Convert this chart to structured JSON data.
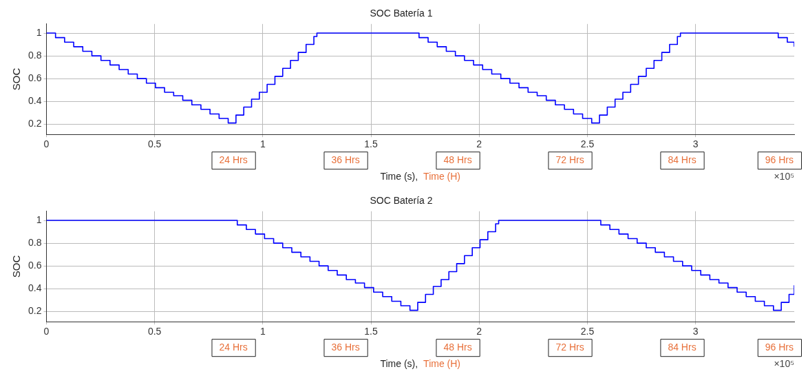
{
  "chart_data": [
    {
      "type": "step",
      "title": "SOC Batería 1",
      "xlabel": "Time (s),",
      "ylabel": "SOC",
      "xlim": [
        0,
        3.456
      ],
      "ylim": [
        0.11,
        1.08
      ],
      "xticks": [
        0,
        0.5,
        1,
        1.5,
        2,
        2.5,
        3
      ],
      "yticks": [
        0.2,
        0.4,
        0.6,
        0.8,
        1
      ],
      "grid": true,
      "annotations": [
        "Time (H)",
        "×10⁵",
        "24 Hrs",
        "36 Hrs",
        "48 Hrs",
        "72 Hrs",
        "84 Hrs",
        "96 Hrs"
      ],
      "series": [
        {
          "color": "#0000ff",
          "x": [
            0,
            0.042,
            0.084,
            0.126,
            0.168,
            0.21,
            0.252,
            0.294,
            0.336,
            0.378,
            0.42,
            0.462,
            0.504,
            0.546,
            0.588,
            0.63,
            0.672,
            0.714,
            0.756,
            0.798,
            0.84,
            0.876,
            0.912,
            0.948,
            0.984,
            1.02,
            1.056,
            1.092,
            1.128,
            1.164,
            1.2,
            1.236,
            1.25,
            1.68,
            1.722,
            1.764,
            1.806,
            1.848,
            1.89,
            1.932,
            1.974,
            2.016,
            2.058,
            2.1,
            2.142,
            2.184,
            2.226,
            2.268,
            2.31,
            2.352,
            2.394,
            2.436,
            2.478,
            2.52,
            2.556,
            2.592,
            2.628,
            2.664,
            2.7,
            2.736,
            2.772,
            2.808,
            2.844,
            2.88,
            2.916,
            2.93,
            3.34,
            3.382,
            3.424,
            3.456
          ],
          "values": [
            1,
            0.96,
            0.92,
            0.88,
            0.84,
            0.8,
            0.76,
            0.72,
            0.68,
            0.64,
            0.6,
            0.56,
            0.52,
            0.48,
            0.45,
            0.41,
            0.37,
            0.33,
            0.29,
            0.25,
            0.21,
            0.28,
            0.35,
            0.42,
            0.48,
            0.55,
            0.62,
            0.69,
            0.76,
            0.83,
            0.9,
            0.97,
            1,
            1,
            0.96,
            0.92,
            0.88,
            0.84,
            0.8,
            0.76,
            0.72,
            0.68,
            0.64,
            0.6,
            0.56,
            0.52,
            0.48,
            0.45,
            0.41,
            0.37,
            0.33,
            0.29,
            0.25,
            0.21,
            0.28,
            0.35,
            0.42,
            0.48,
            0.55,
            0.62,
            0.69,
            0.76,
            0.83,
            0.9,
            0.97,
            1,
            1,
            0.96,
            0.92,
            0.88
          ]
        }
      ]
    },
    {
      "type": "step",
      "title": "SOC Batería 2",
      "xlabel": "Time (s),",
      "ylabel": "SOC",
      "xlim": [
        0,
        3.456
      ],
      "ylim": [
        0.11,
        1.08
      ],
      "xticks": [
        0,
        0.5,
        1,
        1.5,
        2,
        2.5,
        3
      ],
      "yticks": [
        0.2,
        0.4,
        0.6,
        0.8,
        1
      ],
      "grid": true,
      "annotations": [
        "Time (H)",
        "×10⁵",
        "24 Hrs",
        "36 Hrs",
        "48 Hrs",
        "72 Hrs",
        "84 Hrs",
        "96 Hrs"
      ],
      "series": [
        {
          "color": "#0000ff",
          "x": [
            0,
            0.84,
            0.882,
            0.924,
            0.966,
            1.008,
            1.05,
            1.092,
            1.134,
            1.176,
            1.218,
            1.26,
            1.302,
            1.344,
            1.386,
            1.428,
            1.47,
            1.512,
            1.554,
            1.596,
            1.638,
            1.68,
            1.716,
            1.752,
            1.788,
            1.824,
            1.86,
            1.896,
            1.932,
            1.968,
            2.004,
            2.04,
            2.076,
            2.09,
            2.52,
            2.562,
            2.604,
            2.646,
            2.688,
            2.73,
            2.772,
            2.814,
            2.856,
            2.898,
            2.94,
            2.982,
            3.024,
            3.066,
            3.108,
            3.15,
            3.192,
            3.234,
            3.276,
            3.318,
            3.36,
            3.396,
            3.432,
            3.456
          ],
          "values": [
            1,
            1,
            0.96,
            0.92,
            0.88,
            0.84,
            0.8,
            0.76,
            0.72,
            0.68,
            0.64,
            0.6,
            0.56,
            0.52,
            0.48,
            0.45,
            0.41,
            0.37,
            0.33,
            0.29,
            0.25,
            0.21,
            0.28,
            0.35,
            0.42,
            0.48,
            0.55,
            0.62,
            0.69,
            0.76,
            0.83,
            0.9,
            0.97,
            1,
            1,
            0.96,
            0.92,
            0.88,
            0.84,
            0.8,
            0.76,
            0.72,
            0.68,
            0.64,
            0.6,
            0.56,
            0.52,
            0.48,
            0.45,
            0.41,
            0.37,
            0.33,
            0.29,
            0.25,
            0.21,
            0.28,
            0.35,
            0.43
          ]
        }
      ]
    }
  ]
}
